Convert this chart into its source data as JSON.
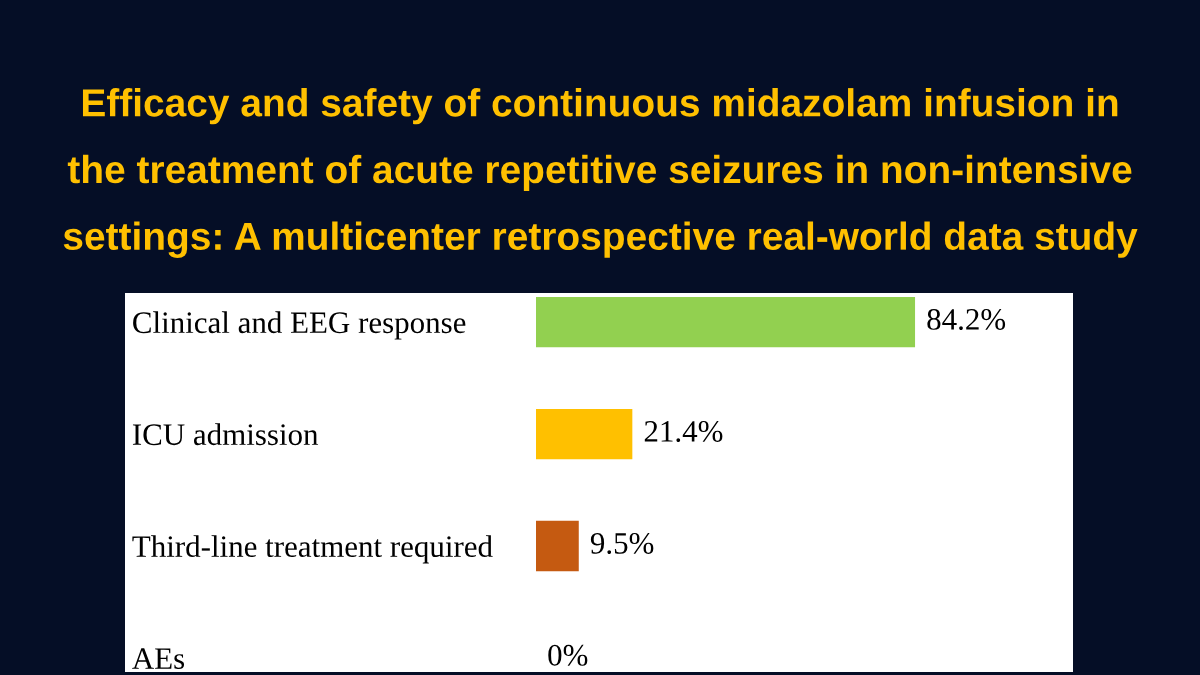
{
  "chart_data": {
    "type": "bar",
    "orientation": "horizontal",
    "title": "Efficacy and safety of continuous midazolam infusion in\nthe treatment of acute repetitive seizures in non-intensive\nsettings: A multicenter retrospective real-world data study",
    "categories": [
      "Clinical and EEG response",
      "ICU admission",
      "Third-line treatment required",
      "AEs"
    ],
    "values": [
      84.2,
      21.4,
      9.5,
      0
    ],
    "colors": [
      "#92d050",
      "#ffc000",
      "#c55a11",
      null
    ],
    "value_labels": [
      "84.2%",
      "21.4%",
      "9.5%",
      "0%"
    ],
    "tick_labels": "y"
  }
}
